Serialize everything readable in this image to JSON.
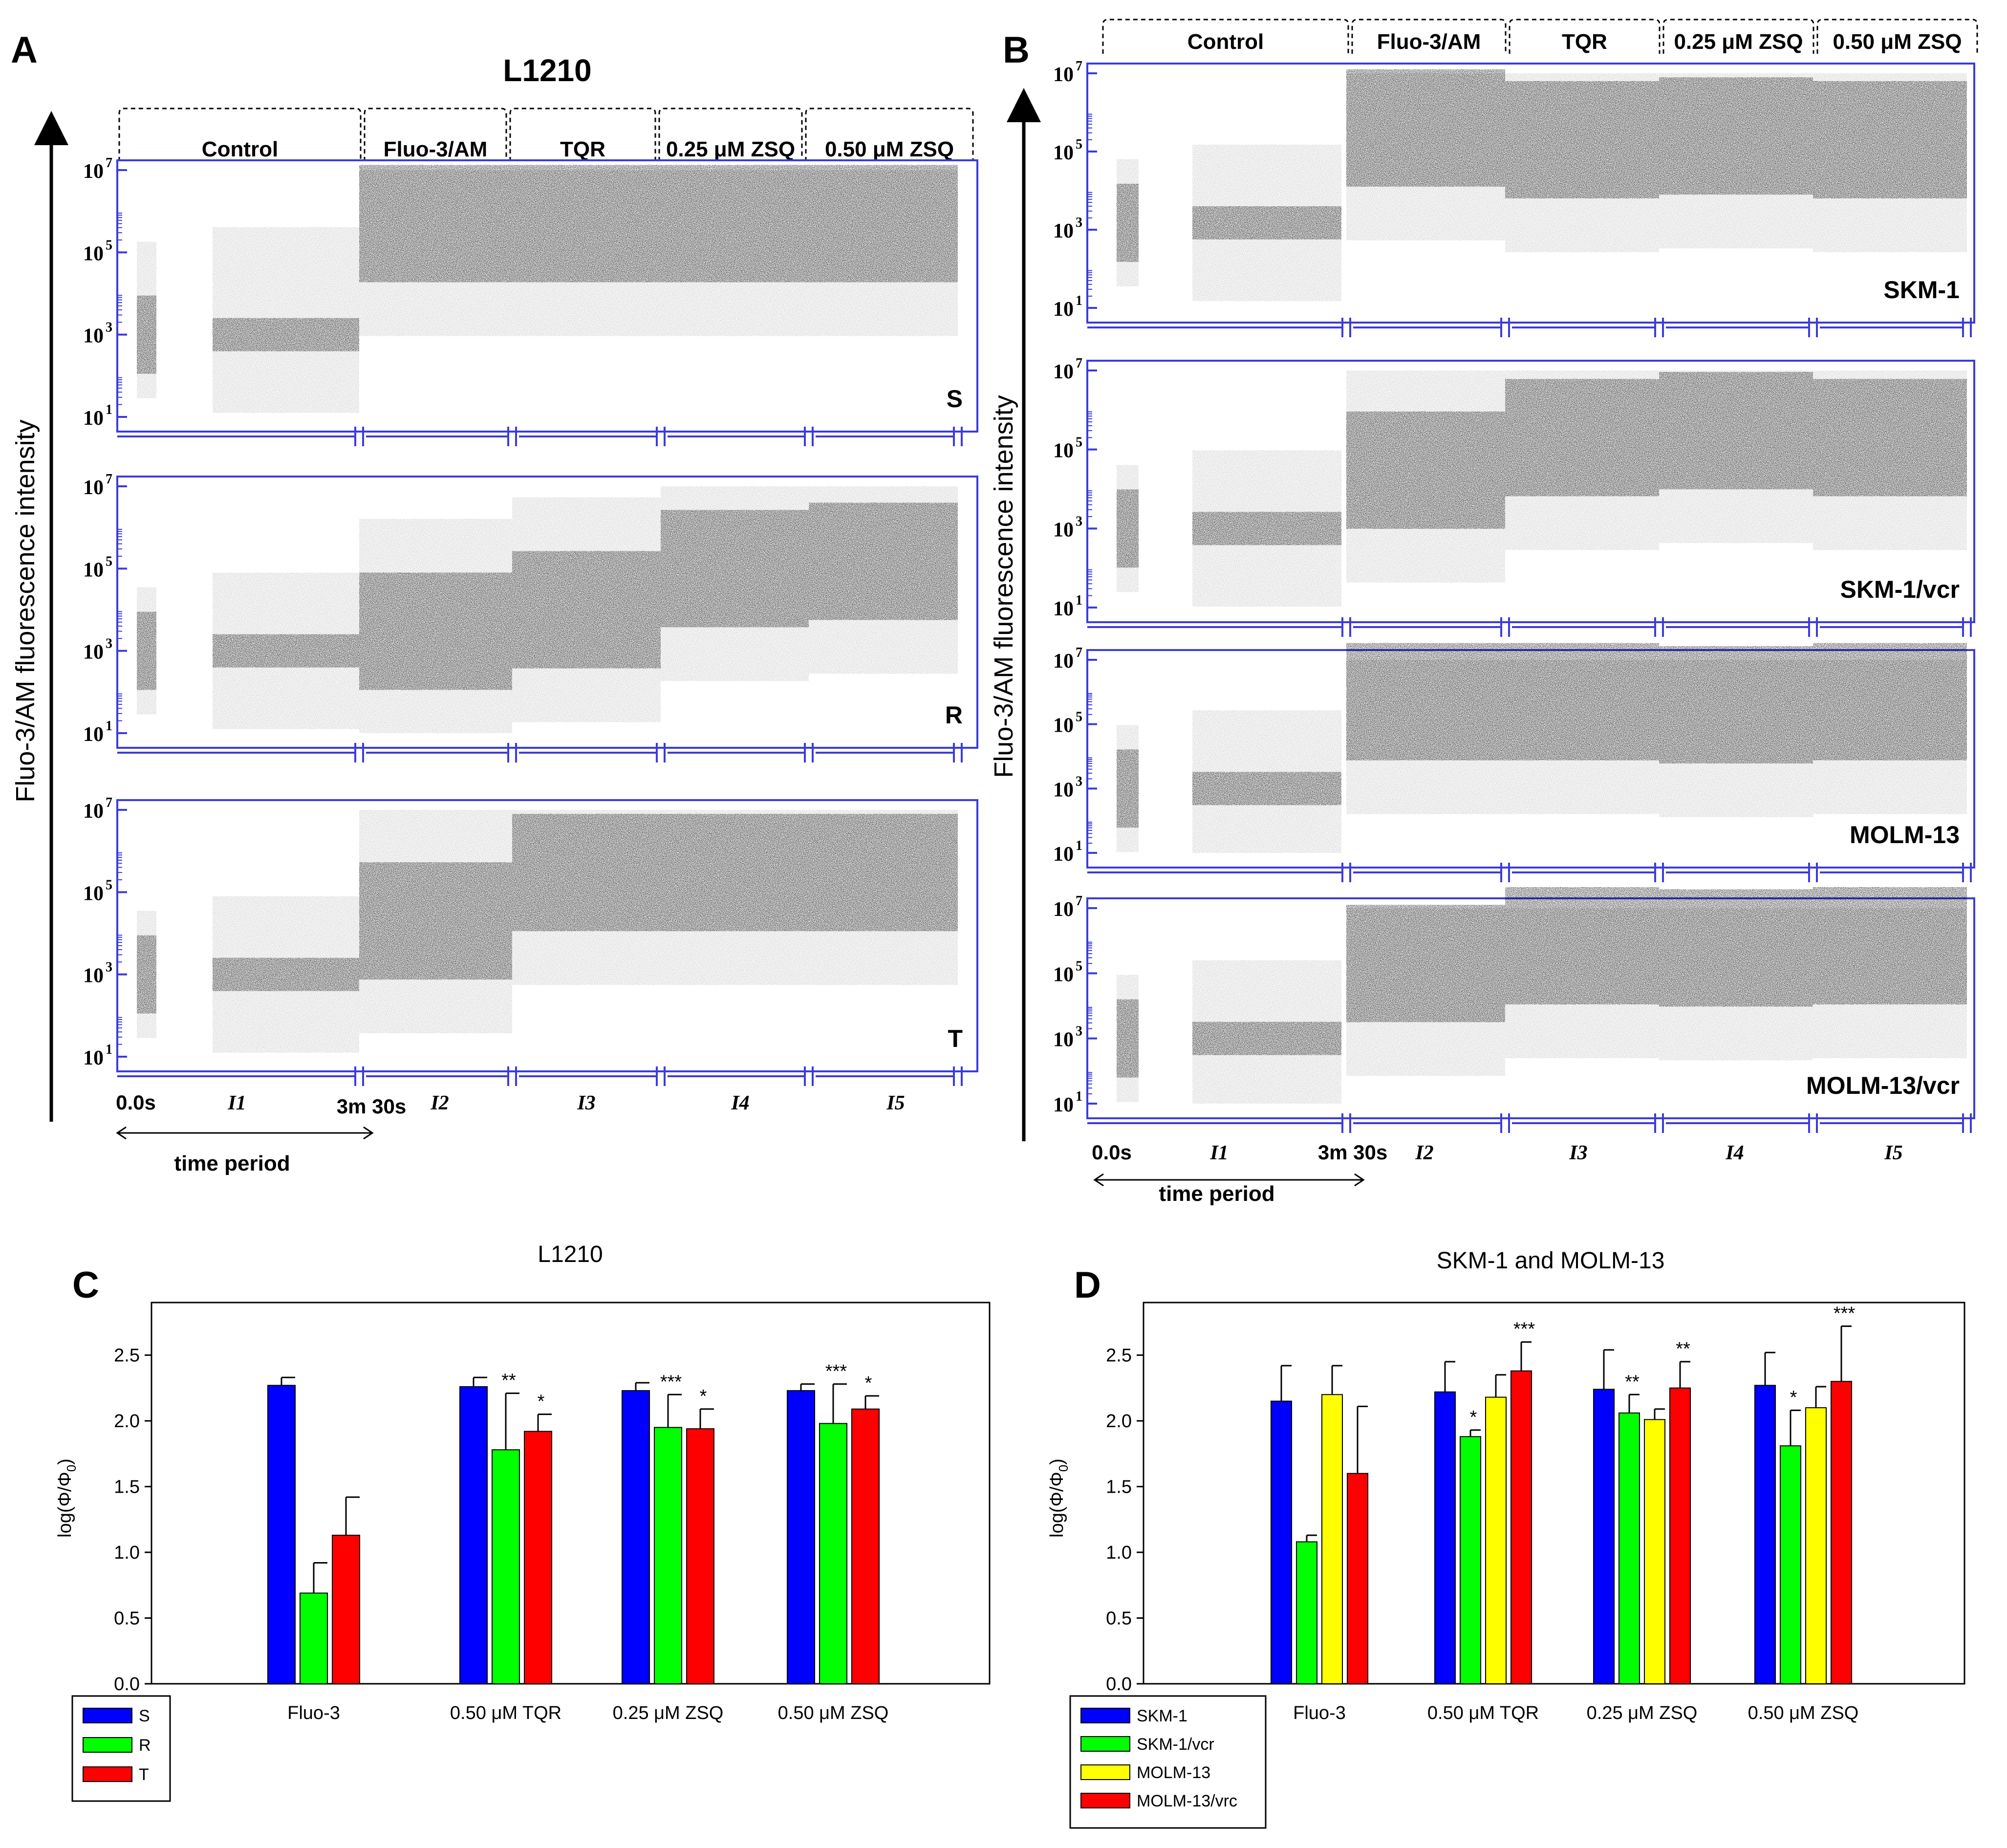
{
  "panel_letters": {
    "A": "A",
    "B": "B",
    "C": "C",
    "D": "D"
  },
  "colors": {
    "frame": "#3b3bdc",
    "dot_dark": "#000000",
    "dot_light": "#aaaaaa",
    "S": "#0000ff",
    "R": "#00ff00",
    "T": "#ff0000",
    "SKM-1": "#0000ff",
    "SKM-1/vcr": "#00ff00",
    "MOLM-13": "#ffff00",
    "MOLM-13/vrc": "#ff0000"
  },
  "panel_A": {
    "title": "L1210",
    "y_axis_title": "Fluo-3/AM fluorescence intensity",
    "period_labels": [
      "Control",
      "Fluo-3/AM",
      "TQR",
      "0.25 μM ZSQ",
      "0.50 μM ZSQ"
    ],
    "y_tick_labels": [
      "10",
      "10",
      "10",
      "10"
    ],
    "y_tick_exponents": [
      "1",
      "3",
      "5",
      "7"
    ],
    "panel_labels": [
      "S",
      "R",
      "T"
    ],
    "x_labels": {
      "start": "0.0s",
      "end_control": "3m 30s",
      "time_period": "time period"
    },
    "interval_labels": [
      "I1",
      "I2",
      "I3",
      "I4",
      "I5"
    ]
  },
  "panel_B": {
    "y_axis_title": "Fluo-3/AM fluorescence intensity",
    "period_labels": [
      "Control",
      "Fluo-3/AM",
      "TQR",
      "0.25 μM ZSQ",
      "0.50 μM ZSQ"
    ],
    "y_tick_labels": [
      "10",
      "10",
      "10",
      "10"
    ],
    "y_tick_exponents": [
      "1",
      "3",
      "5",
      "7"
    ],
    "panel_labels": [
      "SKM-1",
      "SKM-1/vcr",
      "MOLM-13",
      "MOLM-13/vcr"
    ],
    "x_labels": {
      "start": "0.0s",
      "end_control": "3m 30s",
      "time_period": "time period"
    },
    "interval_labels": [
      "I1",
      "I2",
      "I3",
      "I4",
      "I5"
    ]
  },
  "chart_data": [
    {
      "type": "scatter",
      "panel": "A",
      "title": "L1210",
      "ylabel": "Fluo-3/AM fluorescence intensity",
      "y_scale": "log",
      "ylim": [
        10,
        10000000
      ],
      "intervals": [
        "Control",
        "Fluo-3/AM",
        "TQR",
        "0.25 μM ZSQ",
        "0.50 μM ZSQ"
      ],
      "series": [
        {
          "name": "S",
          "median_intensity": [
            1000,
            500000,
            500000,
            500000,
            500000
          ]
        },
        {
          "name": "R",
          "median_intensity": [
            1000,
            3000,
            10000,
            100000,
            150000
          ]
        },
        {
          "name": "T",
          "median_intensity": [
            1000,
            20000,
            300000,
            300000,
            300000
          ]
        }
      ]
    },
    {
      "type": "scatter",
      "panel": "B",
      "ylabel": "Fluo-3/AM fluorescence intensity",
      "y_scale": "log",
      "ylim": [
        10,
        10000000
      ],
      "intervals": [
        "Control",
        "Fluo-3/AM",
        "TQR",
        "0.25 μM ZSQ",
        "0.50 μM ZSQ"
      ],
      "series": [
        {
          "name": "SKM-1",
          "median_intensity": [
            1500,
            400000,
            200000,
            250000,
            200000
          ]
        },
        {
          "name": "SKM-1/vcr",
          "median_intensity": [
            1000,
            30000,
            200000,
            300000,
            200000
          ]
        },
        {
          "name": "MOLM-13",
          "median_intensity": [
            1000,
            500000,
            500000,
            400000,
            500000
          ]
        },
        {
          "name": "MOLM-13/vcr",
          "median_intensity": [
            1000,
            200000,
            700000,
            600000,
            700000
          ]
        }
      ]
    },
    {
      "type": "bar",
      "panel": "C",
      "title": "L1210",
      "ylabel": "log(Φ/Φ",
      "ylabel_sub": "0",
      "ylim": [
        0,
        2.9
      ],
      "y_ticks": [
        "0.0",
        "0.5",
        "1.0",
        "1.5",
        "2.0",
        "2.5"
      ],
      "categories": [
        "Fluo-3",
        "0.50 μM TQR",
        "0.25 μM ZSQ",
        "0.50 μM ZSQ"
      ],
      "legend_position": "bottom-left",
      "series": [
        {
          "name": "S",
          "values": [
            2.27,
            2.26,
            2.23,
            2.23
          ],
          "errors": [
            0.06,
            0.07,
            0.06,
            0.05
          ],
          "sig": [
            "",
            "",
            "",
            ""
          ]
        },
        {
          "name": "R",
          "values": [
            0.69,
            1.78,
            1.95,
            1.98
          ],
          "errors": [
            0.23,
            0.43,
            0.25,
            0.3
          ],
          "sig": [
            "",
            "**",
            "***",
            "***"
          ]
        },
        {
          "name": "T",
          "values": [
            1.13,
            1.92,
            1.94,
            2.09
          ],
          "errors": [
            0.29,
            0.13,
            0.15,
            0.1
          ],
          "sig": [
            "",
            "*",
            "*",
            "*"
          ]
        }
      ]
    },
    {
      "type": "bar",
      "panel": "D",
      "title": "SKM-1 and MOLM-13",
      "ylabel": "log(Φ/Φ",
      "ylabel_sub": "0",
      "ylim": [
        0,
        2.9
      ],
      "y_ticks": [
        "0.0",
        "0.5",
        "1.0",
        "1.5",
        "2.0",
        "2.5"
      ],
      "categories": [
        "Fluo-3",
        "0.50 μM TQR",
        "0.25 μM ZSQ",
        "0.50 μM ZSQ"
      ],
      "legend_position": "bottom-left",
      "series": [
        {
          "name": "SKM-1",
          "values": [
            2.15,
            2.22,
            2.24,
            2.27
          ],
          "errors": [
            0.27,
            0.23,
            0.3,
            0.25
          ],
          "sig": [
            "",
            "",
            "",
            ""
          ]
        },
        {
          "name": "SKM-1/vcr",
          "values": [
            1.08,
            1.88,
            2.06,
            1.81
          ],
          "errors": [
            0.05,
            0.05,
            0.14,
            0.27
          ],
          "sig": [
            "",
            "*",
            "**",
            "*"
          ]
        },
        {
          "name": "MOLM-13",
          "values": [
            2.2,
            2.18,
            2.01,
            2.1
          ],
          "errors": [
            0.22,
            0.17,
            0.08,
            0.16
          ],
          "sig": [
            "",
            "",
            "",
            ""
          ]
        },
        {
          "name": "MOLM-13/vrc",
          "values": [
            1.6,
            2.38,
            2.25,
            2.3
          ],
          "errors": [
            0.51,
            0.22,
            0.2,
            0.42
          ],
          "sig": [
            "",
            "***",
            "**",
            "***"
          ]
        }
      ]
    }
  ]
}
